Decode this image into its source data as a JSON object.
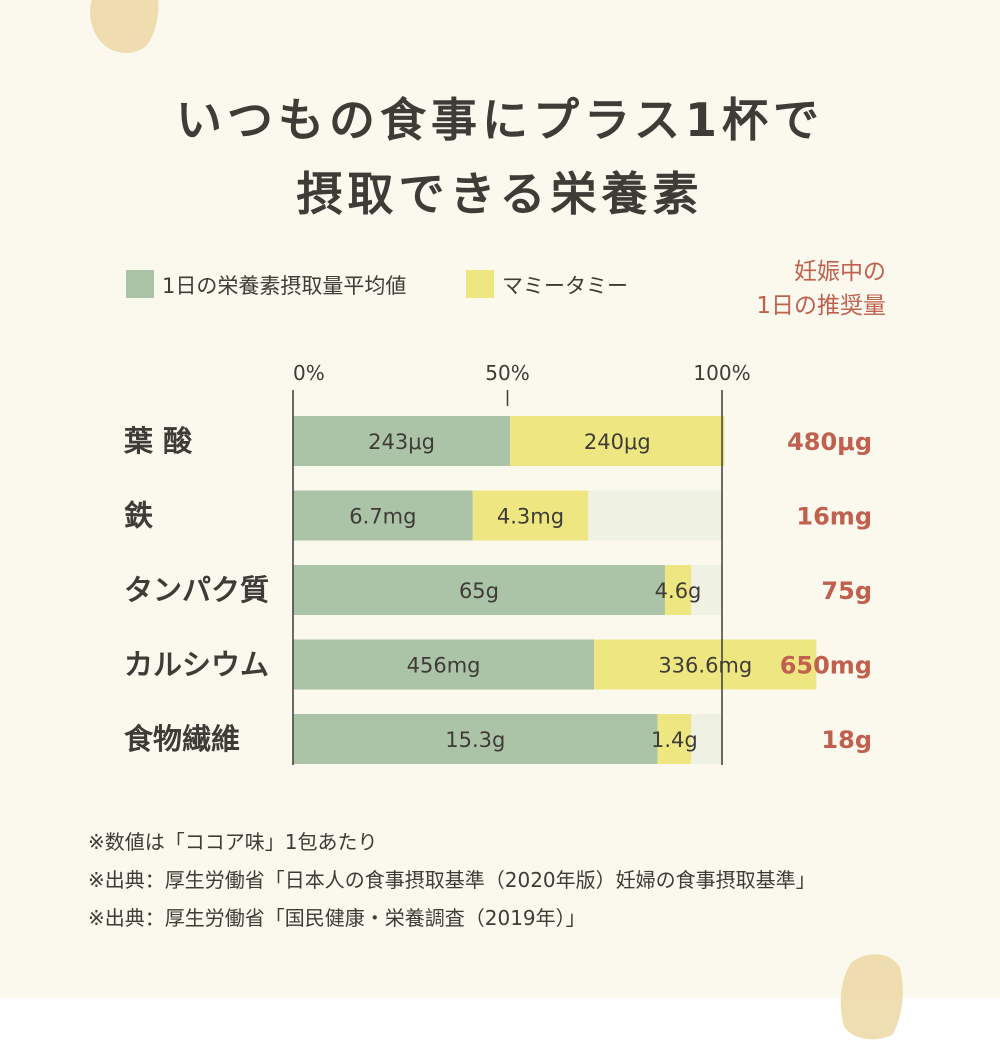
{
  "title": {
    "line1": "いつもの食事にプラス1杯で",
    "line2": "摂取できる栄養素"
  },
  "legend": {
    "average_label": "1日の栄養素摂取量平均値",
    "product_label": "マミータミー",
    "recommended_header_line1": "妊娠中の",
    "recommended_header_line2": "1日の推奨量"
  },
  "colors": {
    "average": "#abc4a7",
    "product": "#eee781",
    "remainder": "#eff1e2",
    "recommended_text": "#c0614f",
    "text": "#3f3b37"
  },
  "chart_data": {
    "type": "bar",
    "orientation": "horizontal",
    "stacked": true,
    "x_unit": "% of recommended daily intake",
    "x_ticks": [
      "0%",
      "50%",
      "100%"
    ],
    "xlim": [
      0,
      110
    ],
    "categories": [
      "葉 酸",
      "鉄",
      "タンパク質",
      "カルシウム",
      "食物繊維"
    ],
    "series": [
      {
        "name": "1日の栄養素摂取量平均値",
        "percent": [
          50.6,
          41.9,
          86.7,
          70.2,
          85.0
        ],
        "labels": [
          "243μg",
          "6.7mg",
          "65g",
          "456mg",
          "15.3g"
        ]
      },
      {
        "name": "マミータミー",
        "percent": [
          50.0,
          26.9,
          6.1,
          51.8,
          7.8
        ],
        "labels": [
          "240μg",
          "4.3mg",
          "4.6g",
          "336.6mg",
          "1.4g"
        ]
      }
    ],
    "recommended": [
      "480μg",
      "16mg",
      "75g",
      "650mg",
      "18g"
    ]
  },
  "footnotes": [
    "※数値は「ココア味」1包あたり",
    "※出典：厚生労働省「日本人の食事摂取基準（2020年版）妊婦の食事摂取基準」",
    "※出典：厚生労働省「国民健康・栄養調査（2019年）」"
  ]
}
